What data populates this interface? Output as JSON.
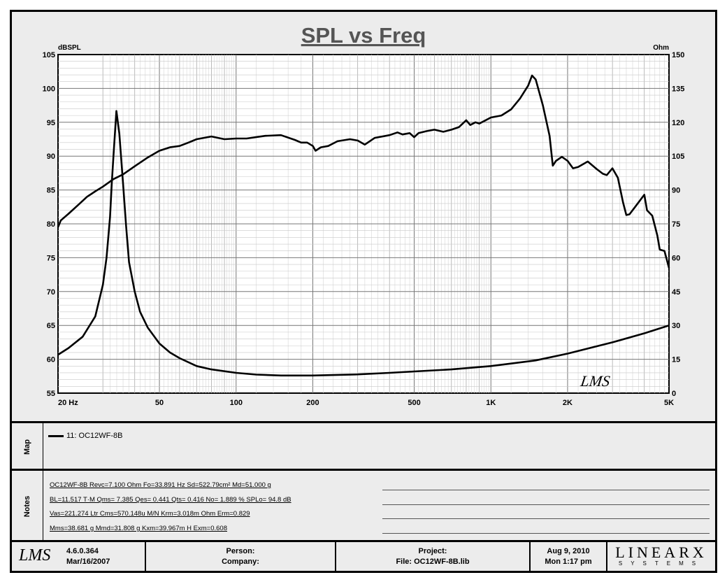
{
  "chart_data": {
    "type": "line",
    "title": "SPL vs Freq",
    "x_scale": "log",
    "xlim": [
      20,
      5000
    ],
    "x_ticks": [
      20,
      50,
      100,
      200,
      500,
      1000,
      2000,
      5000
    ],
    "x_tick_labels": [
      "20  Hz",
      "50",
      "100",
      "200",
      "500",
      "1K",
      "2K",
      "5K"
    ],
    "ylabel_left": "dBSPL",
    "ylim_left": [
      55,
      105
    ],
    "y_ticks_left": [
      55,
      60,
      65,
      70,
      75,
      80,
      85,
      90,
      95,
      100,
      105
    ],
    "ylabel_right": "Ohm",
    "ylim_right": [
      0,
      150
    ],
    "y_ticks_right": [
      0,
      15,
      30,
      45,
      60,
      75,
      90,
      105,
      120,
      135,
      150
    ],
    "grid": true,
    "series": [
      {
        "axis": "left",
        "points": [
          [
            20,
            79.5
          ],
          [
            20.5,
            80.5
          ],
          [
            22,
            81.5
          ],
          [
            24,
            82.8
          ],
          [
            26,
            84
          ],
          [
            28,
            84.8
          ],
          [
            30,
            85.5
          ],
          [
            33,
            86.6
          ],
          [
            36,
            87.3
          ],
          [
            40,
            88.5
          ],
          [
            45,
            89.8
          ],
          [
            50,
            90.8
          ],
          [
            55,
            91.3
          ],
          [
            60,
            91.5
          ],
          [
            65,
            92
          ],
          [
            70,
            92.5
          ],
          [
            80,
            92.9
          ],
          [
            90,
            92.5
          ],
          [
            100,
            92.6
          ],
          [
            110,
            92.6
          ],
          [
            130,
            93
          ],
          [
            150,
            93.1
          ],
          [
            170,
            92.4
          ],
          [
            180,
            92
          ],
          [
            190,
            92
          ],
          [
            200,
            91.5
          ],
          [
            205,
            90.8
          ],
          [
            215,
            91.3
          ],
          [
            230,
            91.5
          ],
          [
            250,
            92.2
          ],
          [
            280,
            92.5
          ],
          [
            300,
            92.3
          ],
          [
            320,
            91.7
          ],
          [
            350,
            92.7
          ],
          [
            400,
            93.1
          ],
          [
            430,
            93.5
          ],
          [
            450,
            93.2
          ],
          [
            480,
            93.4
          ],
          [
            500,
            92.8
          ],
          [
            520,
            93.4
          ],
          [
            560,
            93.7
          ],
          [
            600,
            93.9
          ],
          [
            650,
            93.6
          ],
          [
            700,
            93.9
          ],
          [
            750,
            94.3
          ],
          [
            800,
            95.3
          ],
          [
            830,
            94.6
          ],
          [
            870,
            95
          ],
          [
            900,
            94.8
          ],
          [
            1000,
            95.7
          ],
          [
            1100,
            96
          ],
          [
            1200,
            96.9
          ],
          [
            1300,
            98.5
          ],
          [
            1400,
            100.4
          ],
          [
            1450,
            101.9
          ],
          [
            1500,
            101.3
          ],
          [
            1600,
            97.5
          ],
          [
            1700,
            93
          ],
          [
            1750,
            88.6
          ],
          [
            1800,
            89.3
          ],
          [
            1900,
            89.9
          ],
          [
            2000,
            89.3
          ],
          [
            2100,
            88.2
          ],
          [
            2200,
            88.4
          ],
          [
            2400,
            89.2
          ],
          [
            2600,
            88.1
          ],
          [
            2750,
            87.4
          ],
          [
            2850,
            87.2
          ],
          [
            3000,
            88.2
          ],
          [
            3150,
            86.8
          ],
          [
            3300,
            83.2
          ],
          [
            3400,
            81.3
          ],
          [
            3500,
            81.4
          ],
          [
            3700,
            82.6
          ],
          [
            4000,
            84.3
          ],
          [
            4100,
            82
          ],
          [
            4300,
            81.2
          ],
          [
            4500,
            78.3
          ],
          [
            4600,
            76.2
          ],
          [
            4800,
            76
          ],
          [
            5000,
            73.5
          ]
        ]
      },
      {
        "axis": "right",
        "points": [
          [
            20,
            17
          ],
          [
            22,
            20
          ],
          [
            25,
            25
          ],
          [
            28,
            34
          ],
          [
            30,
            48
          ],
          [
            31,
            60
          ],
          [
            32,
            78
          ],
          [
            32.5,
            93
          ],
          [
            33,
            105
          ],
          [
            33.9,
            125
          ],
          [
            34.8,
            115
          ],
          [
            36,
            93
          ],
          [
            37,
            74
          ],
          [
            38,
            58
          ],
          [
            40,
            45
          ],
          [
            42,
            36
          ],
          [
            45,
            29
          ],
          [
            50,
            22
          ],
          [
            55,
            18
          ],
          [
            60,
            15.5
          ],
          [
            70,
            12
          ],
          [
            80,
            10.5
          ],
          [
            100,
            9
          ],
          [
            120,
            8.2
          ],
          [
            150,
            7.8
          ],
          [
            200,
            7.8
          ],
          [
            300,
            8.3
          ],
          [
            400,
            9
          ],
          [
            500,
            9.6
          ],
          [
            700,
            10.5
          ],
          [
            1000,
            12
          ],
          [
            1500,
            14.5
          ],
          [
            2000,
            17.5
          ],
          [
            3000,
            22.5
          ],
          [
            4000,
            26.5
          ],
          [
            5000,
            30
          ]
        ]
      }
    ]
  },
  "map": {
    "label": "Map",
    "legend": "11: OC12WF-8B"
  },
  "notes": {
    "label": "Notes",
    "lines": [
      "OC12WF-8B  Revc=7.100 Ohm  Fo=33.891 Hz  Sd=522.79cm²  Md=51.000 g",
      "BL=11.517 T·M  Qms= 7.385  Qes= 0.441  Qts= 0.416  No= 1.889 %  SPLo= 94.8 dB",
      "Vas=221.274 Ltr  Cms=570.148u M/N  Krm=3.018m Ohm  Erm=0.829",
      "Mms=38.681 g  Mmd=31.808 g  Kxm=39.967m H  Exm=0.608"
    ]
  },
  "footer": {
    "version": "4.6.0.364",
    "version_date": "Mar/16/2007",
    "person": "Person:",
    "company": "Company:",
    "project": "Project:",
    "file": "File: OC12WF-8B.lib",
    "date": "Aug  9, 2010",
    "time": "Mon  1:17 pm",
    "brand_top": "LINEARX",
    "brand_bottom": "SYSTEMS",
    "corner_mark": "LMS"
  }
}
